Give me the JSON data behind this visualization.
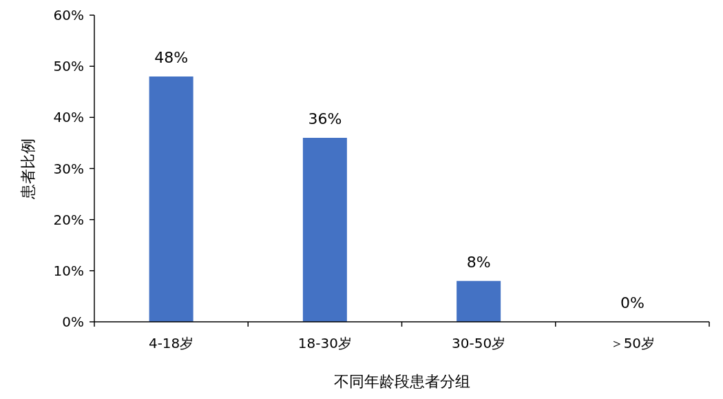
{
  "chart_data": {
    "type": "bar",
    "xlabel": "不同年龄段患者分组",
    "ylabel": "患者比例",
    "categories": [
      "4-18岁",
      "18-30岁",
      "30-50岁",
      "＞50岁"
    ],
    "values": [
      48,
      36,
      8,
      0
    ],
    "color": "#4472c4",
    "value_labels": [
      "48%",
      "36%",
      "8%",
      "0%"
    ],
    "ylim": [
      0,
      60
    ],
    "yticks": [
      {
        "value": 0,
        "label": "0%"
      },
      {
        "value": 10,
        "label": "10%"
      },
      {
        "value": 20,
        "label": "20%"
      },
      {
        "value": 30,
        "label": "30%"
      },
      {
        "value": 40,
        "label": "40%"
      },
      {
        "value": 50,
        "label": "50%"
      },
      {
        "value": 60,
        "label": "60%"
      }
    ],
    "grid": false
  }
}
